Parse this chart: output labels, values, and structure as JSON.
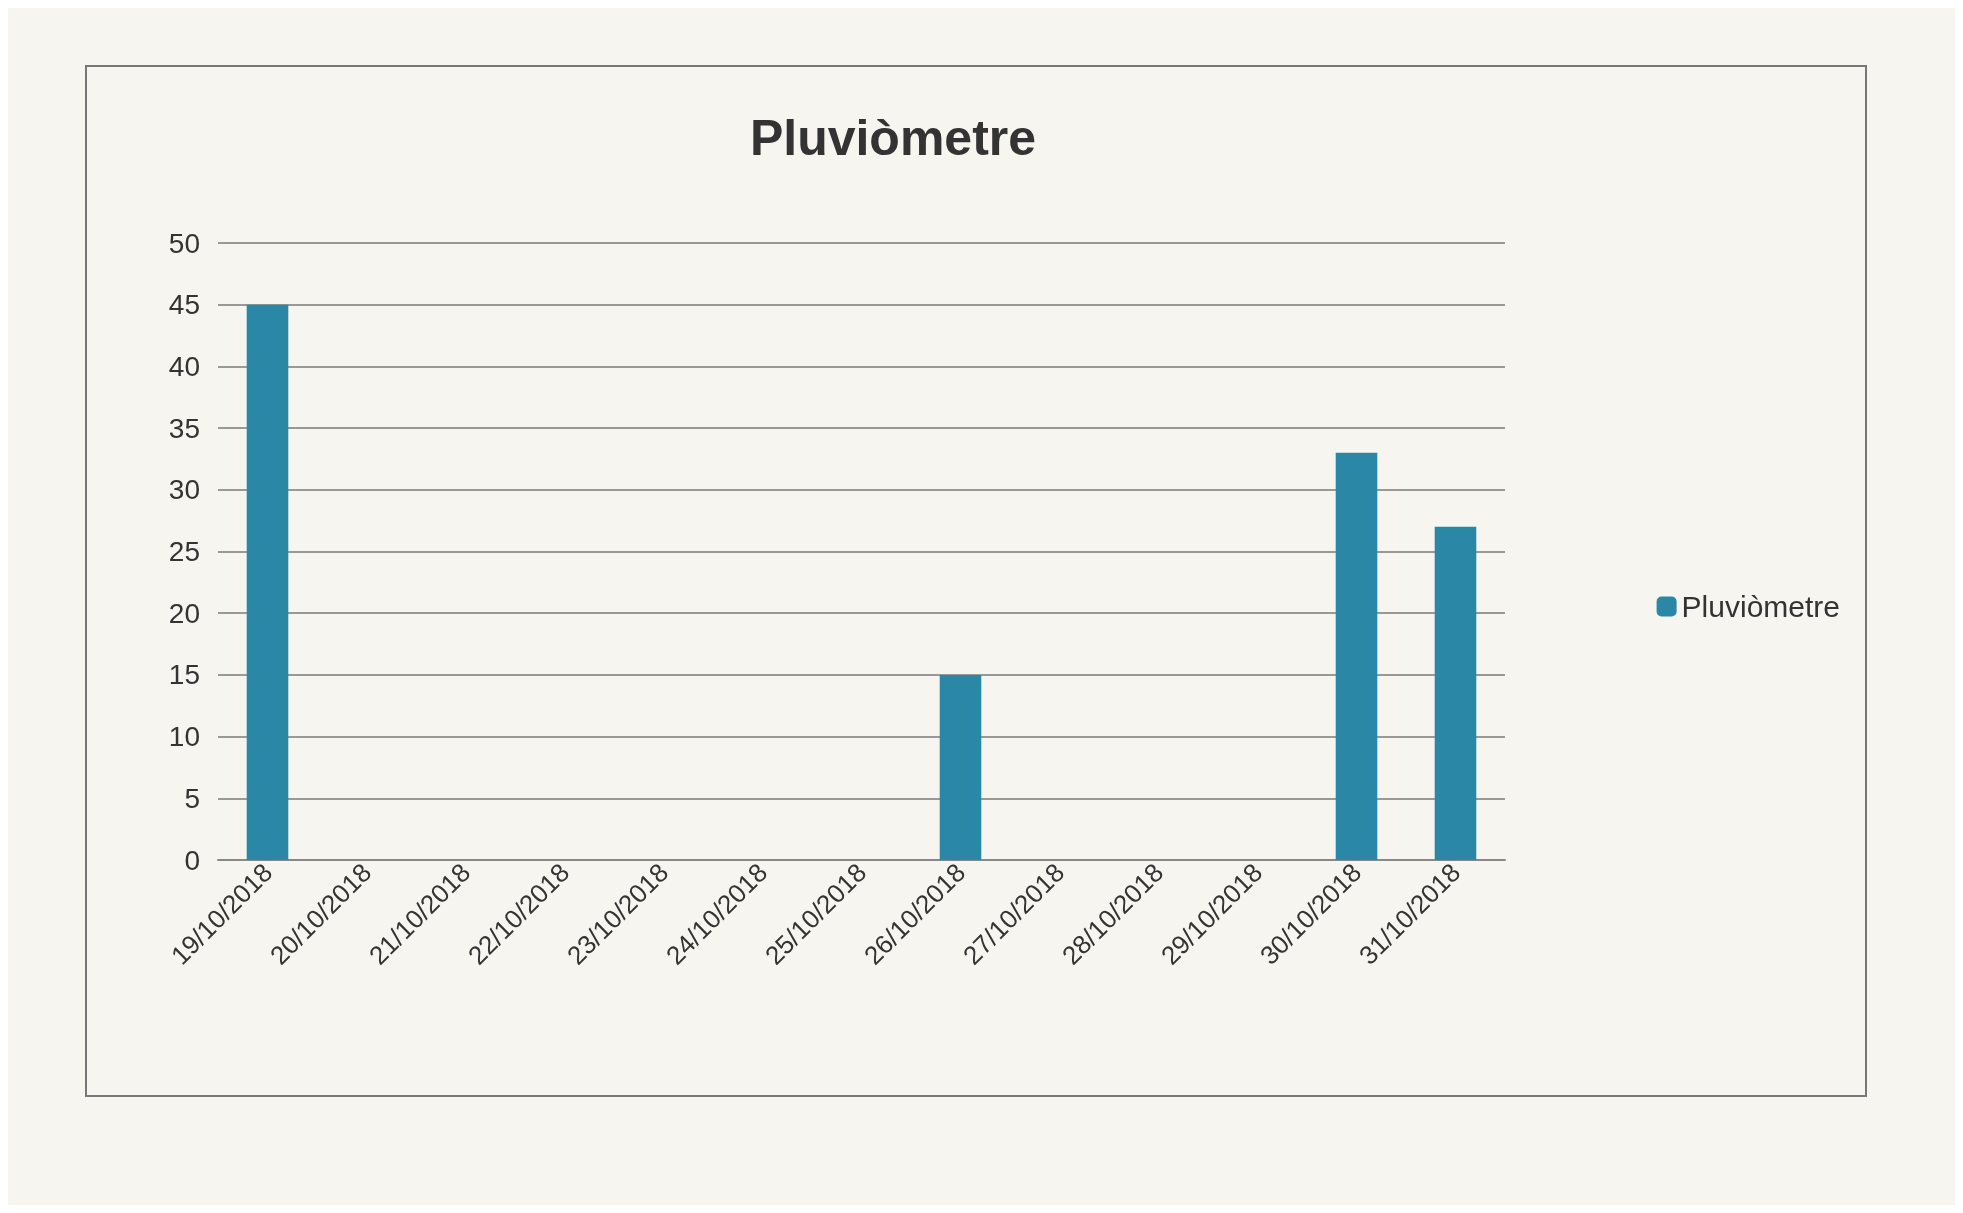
{
  "chart_data": {
    "type": "bar",
    "title": "Pluviòmetre",
    "categories": [
      "19/10/2018",
      "20/10/2018",
      "21/10/2018",
      "22/10/2018",
      "23/10/2018",
      "24/10/2018",
      "25/10/2018",
      "26/10/2018",
      "27/10/2018",
      "28/10/2018",
      "29/10/2018",
      "30/10/2018",
      "31/10/2018"
    ],
    "series": [
      {
        "name": "Pluviòmetre",
        "color": "#2a88a6",
        "values": [
          45,
          0,
          0,
          0,
          0,
          0,
          0,
          15,
          0,
          0,
          0,
          33,
          27
        ]
      }
    ],
    "ylim": [
      0,
      50
    ],
    "yticks": [
      0,
      5,
      10,
      15,
      20,
      25,
      30,
      35,
      40,
      45,
      50
    ],
    "grid": "y",
    "legend": "right"
  }
}
